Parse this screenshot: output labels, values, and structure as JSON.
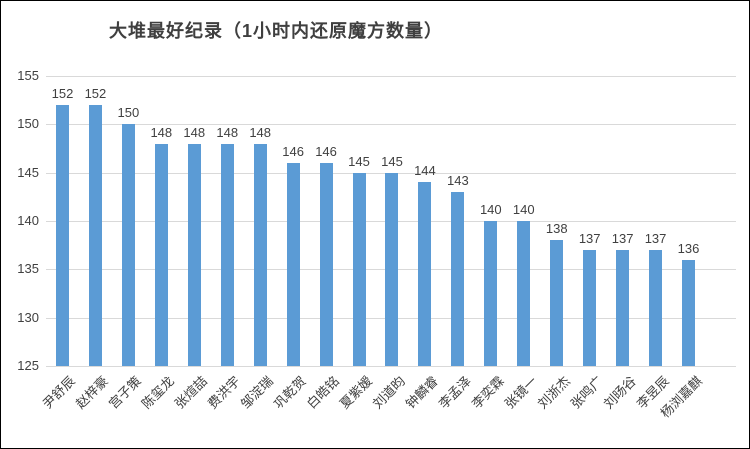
{
  "chart_data": {
    "type": "bar",
    "title": "大堆最好纪录（1小时内还原魔方数量）",
    "categories": [
      "尹舒辰",
      "赵梓豪",
      "宫子策",
      "陈玺龙",
      "张煊喆",
      "费洪宇",
      "邹淀瑞",
      "巩乾贺",
      "白皓铭",
      "夏紫嫒",
      "刘道昀",
      "钟麟睿",
      "李孟泽",
      "李奕霖",
      "张镜一",
      "刘浙杰",
      "张鸣广",
      "刘旸谷",
      "李昱辰",
      "杨浏嘉麒"
    ],
    "values": [
      152,
      152,
      150,
      148,
      148,
      148,
      148,
      146,
      146,
      145,
      145,
      144,
      143,
      140,
      140,
      138,
      137,
      137,
      137,
      136
    ],
    "xlabel": "",
    "ylabel": "",
    "ylim": [
      125,
      155
    ],
    "yticks": [
      125,
      130,
      135,
      140,
      145,
      150,
      155
    ],
    "data_labels": true,
    "legend": "none",
    "grid": "horizontal",
    "colors": {
      "bar": "#5B9BD5",
      "gridline": "#D9D9D9",
      "label": "#404040",
      "title": "#3F3F3F",
      "background": "#FFFFFF",
      "frame": "#000000"
    }
  }
}
